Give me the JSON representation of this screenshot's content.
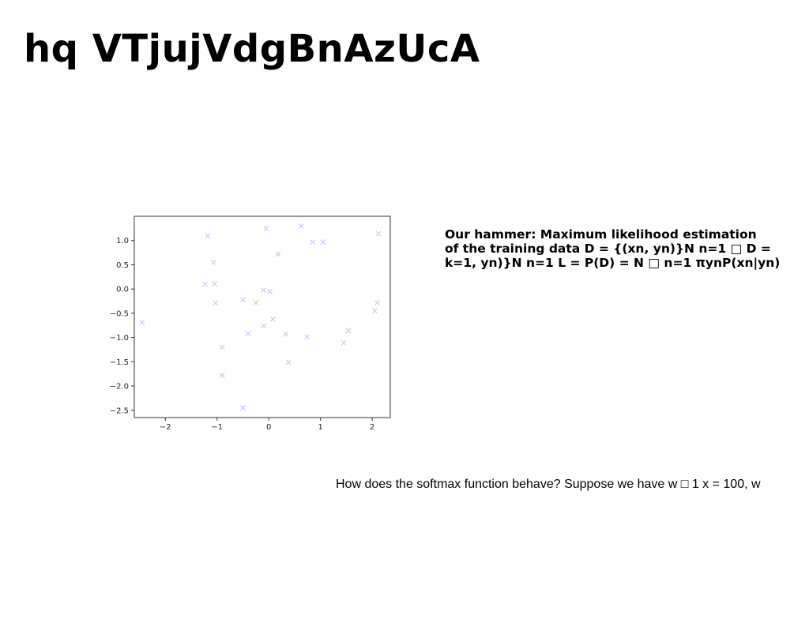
{
  "slide": {
    "title": "hq VTjujVdgBnAzUcA",
    "paragraph_lines": [
      "Our hammer: Maximum likelihood estimation",
      "of the training data D = {(xn, yn)}N n=1 □ D =",
      "k=1, yn)}N n=1 L = P(D) = N □ n=1 πynP(xn|yn)"
    ],
    "question": "How does the softmax function behave? Suppose we have w □ 1 x = 100, w"
  },
  "chart_data": {
    "type": "scatter",
    "title": "",
    "xlabel": "",
    "ylabel": "",
    "xlim": [
      -2.6,
      2.35
    ],
    "ylim": [
      -2.65,
      1.5
    ],
    "grid": false,
    "marker": "x",
    "marker_color": "#c9c9f5",
    "x_ticks": [
      {
        "value": -2,
        "label": "−2"
      },
      {
        "value": -1,
        "label": "−1"
      },
      {
        "value": 0,
        "label": "0"
      },
      {
        "value": 1,
        "label": "1"
      },
      {
        "value": 2,
        "label": "2"
      }
    ],
    "y_ticks": [
      {
        "value": 1.0,
        "label": "1.0"
      },
      {
        "value": 0.5,
        "label": "0.5"
      },
      {
        "value": 0.0,
        "label": "0.0"
      },
      {
        "value": -0.5,
        "label": "−0.5"
      },
      {
        "value": -1.0,
        "label": "−1.0"
      },
      {
        "value": -1.5,
        "label": "−1.5"
      },
      {
        "value": -2.0,
        "label": "−2.0"
      },
      {
        "value": -2.5,
        "label": "−2.5"
      }
    ],
    "points": [
      {
        "x": -2.45,
        "y": -0.69
      },
      {
        "x": -1.18,
        "y": 1.1
      },
      {
        "x": -1.07,
        "y": 0.55
      },
      {
        "x": -1.23,
        "y": 0.1
      },
      {
        "x": -1.05,
        "y": 0.11
      },
      {
        "x": -1.03,
        "y": -0.29
      },
      {
        "x": -0.9,
        "y": -1.2
      },
      {
        "x": -0.9,
        "y": -1.78
      },
      {
        "x": -0.5,
        "y": -0.22
      },
      {
        "x": -0.4,
        "y": -0.92
      },
      {
        "x": -0.25,
        "y": -0.28
      },
      {
        "x": -0.1,
        "y": -0.02
      },
      {
        "x": -0.1,
        "y": -0.76
      },
      {
        "x": -0.05,
        "y": 1.25
      },
      {
        "x": 0.02,
        "y": -0.05
      },
      {
        "x": 0.08,
        "y": -0.62
      },
      {
        "x": 0.18,
        "y": 0.72
      },
      {
        "x": 0.33,
        "y": -0.93
      },
      {
        "x": 0.38,
        "y": -1.51
      },
      {
        "x": -0.5,
        "y": -2.45
      },
      {
        "x": 0.63,
        "y": 1.3
      },
      {
        "x": 0.74,
        "y": -0.99
      },
      {
        "x": 0.85,
        "y": 0.97
      },
      {
        "x": 1.05,
        "y": 0.97
      },
      {
        "x": 1.45,
        "y": -1.11
      },
      {
        "x": 1.54,
        "y": -0.86
      },
      {
        "x": 2.05,
        "y": -0.45
      },
      {
        "x": 2.1,
        "y": -0.28
      },
      {
        "x": 2.12,
        "y": 1.14
      }
    ]
  }
}
